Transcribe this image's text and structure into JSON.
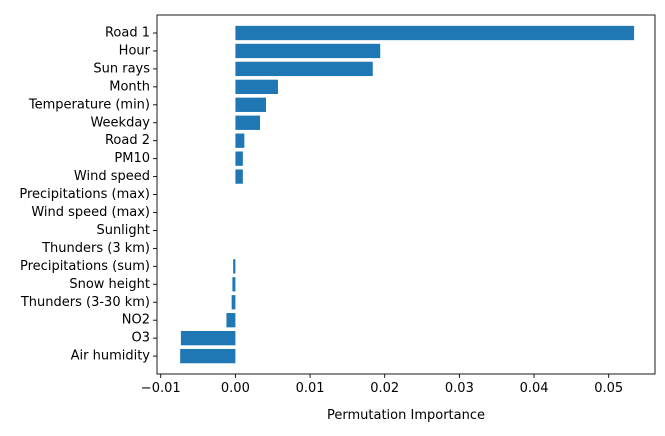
{
  "chart_data": {
    "type": "bar",
    "orientation": "horizontal",
    "title": "",
    "xlabel": "Permutation Importance",
    "ylabel": "",
    "xlim": [
      -0.0105,
      0.0562
    ],
    "x_ticks": [
      -0.01,
      0.0,
      0.01,
      0.02,
      0.03,
      0.04,
      0.05
    ],
    "x_tick_labels": [
      "−0.01",
      "0.00",
      "0.01",
      "0.02",
      "0.03",
      "0.04",
      "0.05"
    ],
    "grid": false,
    "legend": "none",
    "bar_color": "#1f77b4",
    "categories": [
      "Road 1",
      "Hour",
      "Sun rays",
      "Month",
      "Temperature (min)",
      "Weekday",
      "Road 2",
      "PM10",
      "Wind speed",
      "Precipitations (max)",
      "Wind speed (max)",
      "Sunlight",
      "Thunders (3 km)",
      "Precipitations (sum)",
      "Snow height",
      "Thunders (3-30 km)",
      "NO2",
      "O3",
      "Air humidity"
    ],
    "values": [
      0.0534,
      0.0194,
      0.0184,
      0.0057,
      0.0041,
      0.0033,
      0.0012,
      0.001,
      0.001,
      0.0,
      0.0,
      0.0,
      0.0,
      -0.0003,
      -0.0004,
      -0.0005,
      -0.0012,
      -0.0073,
      -0.0074
    ]
  }
}
